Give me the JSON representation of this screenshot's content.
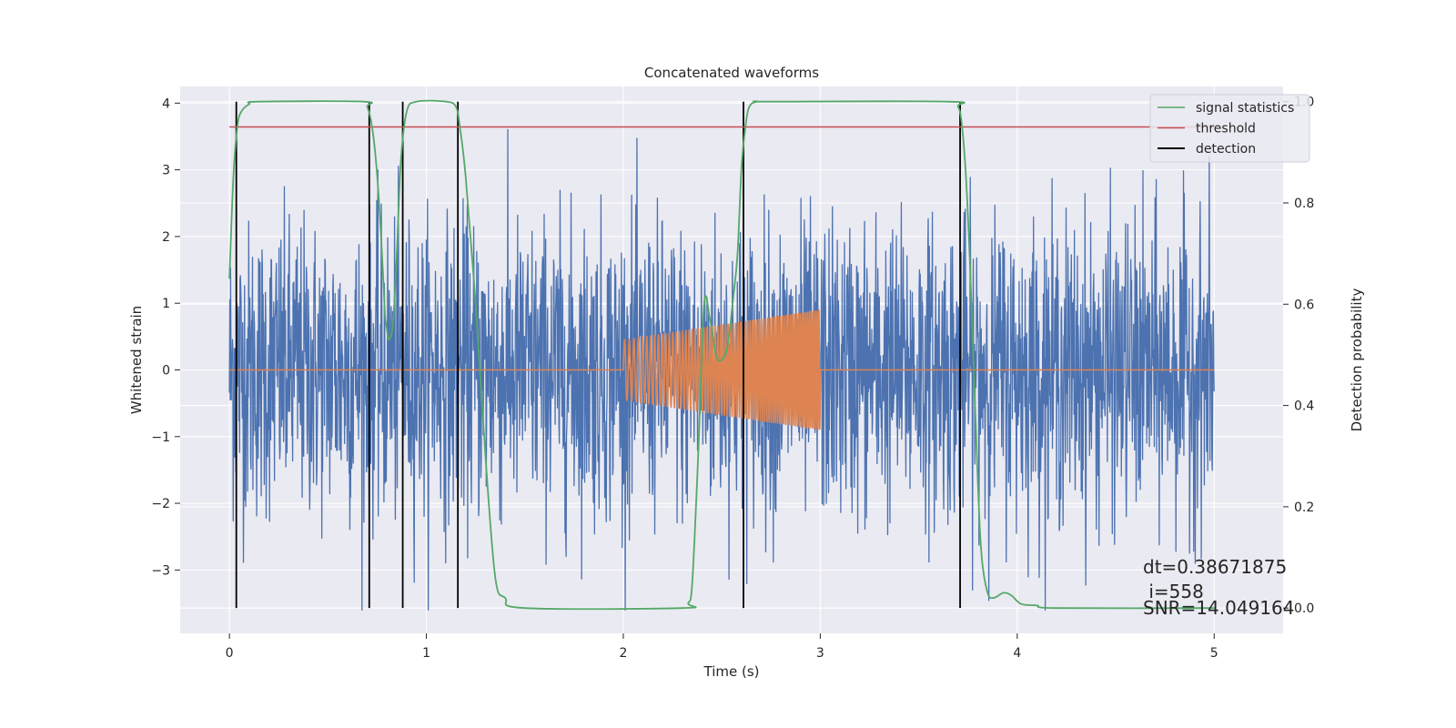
{
  "chart_data": {
    "type": "line",
    "title": "Concatenated waveforms",
    "xlabel": "Time (s)",
    "ylabel": "Whitened strain",
    "ylabel_right": "Detection probability",
    "xlim": [
      -0.25,
      5.35
    ],
    "ylim": [
      -3.95,
      4.25
    ],
    "ylim_right": [
      -0.05,
      1.03
    ],
    "xticks": [
      0,
      1,
      2,
      3,
      4,
      5
    ],
    "yticks": [
      -3,
      -2,
      -1,
      0,
      1,
      2,
      3,
      4
    ],
    "yticks_right": [
      0.0,
      0.2,
      0.4,
      0.6,
      0.8,
      1.0
    ],
    "xtick_labels": [
      "0",
      "1",
      "2",
      "3",
      "4",
      "5"
    ],
    "ytick_labels": [
      "−3",
      "−2",
      "−1",
      "0",
      "1",
      "2",
      "3",
      "4"
    ],
    "ytick_right_labels": [
      "0.0",
      "0.2",
      "0.4",
      "0.6",
      "0.8",
      "1.0"
    ],
    "grid": true,
    "legend_position": "top-right",
    "colors": {
      "strain": "#4c72b0",
      "injection": "#dd8452",
      "signal_statistics": "#55a868",
      "threshold": "#c44e52",
      "detection": "#000000",
      "background": "#eaeaf2",
      "grid": "#ffffff"
    },
    "series": [
      {
        "axis": "left",
        "role": "whitened strain noise",
        "x_range": [
          0,
          5
        ],
        "typical_envelope": [
          -2.2,
          2.2
        ],
        "peak_range": [
          -3.6,
          3.7
        ]
      },
      {
        "axis": "left",
        "role": "injected chirp waveform",
        "x_range": [
          0,
          5
        ],
        "active_range": [
          2.0,
          3.0
        ],
        "amplitude_start": 0.45,
        "amplitude_end": 0.9
      },
      {
        "name": "signal statistics",
        "axis": "right",
        "x": [
          0,
          0.02,
          0.04,
          0.06,
          0.1,
          0.15,
          0.68,
          0.7,
          0.72,
          0.74,
          0.76,
          0.78,
          0.79,
          0.8,
          0.81,
          0.83,
          0.85,
          0.87,
          0.9,
          0.95,
          1.1,
          1.15,
          1.17,
          1.2,
          1.25,
          1.3,
          1.35,
          1.4,
          1.5,
          2.3,
          2.33,
          2.35,
          2.38,
          2.41,
          2.44,
          2.47,
          2.5,
          2.53,
          2.56,
          2.58,
          2.6,
          2.62,
          2.64,
          2.68,
          2.75,
          3.65,
          3.7,
          3.72,
          3.74,
          3.76,
          3.8,
          3.82,
          3.85,
          3.88,
          3.93,
          3.97,
          4.02,
          4.1,
          4.2,
          5.0
        ],
        "values": [
          0.65,
          0.85,
          0.95,
          0.98,
          0.995,
          1.0,
          1.0,
          0.99,
          0.96,
          0.9,
          0.8,
          0.66,
          0.58,
          0.55,
          0.53,
          0.56,
          0.7,
          0.88,
          0.98,
          1.0,
          1.0,
          0.99,
          0.95,
          0.85,
          0.6,
          0.3,
          0.06,
          0.02,
          0.0,
          0.0,
          0.01,
          0.05,
          0.3,
          0.6,
          0.57,
          0.5,
          0.49,
          0.52,
          0.62,
          0.7,
          0.87,
          0.95,
          0.99,
          1.0,
          1.0,
          1.0,
          0.99,
          0.95,
          0.85,
          0.68,
          0.25,
          0.1,
          0.03,
          0.02,
          0.03,
          0.025,
          0.008,
          0.005,
          0.0,
          0.0
        ]
      },
      {
        "name": "threshold",
        "axis": "right",
        "x": [
          0,
          5
        ],
        "values": [
          0.95,
          0.95
        ]
      }
    ],
    "detections": {
      "name": "detection",
      "x": [
        0.035,
        0.71,
        0.88,
        1.16,
        2.61,
        3.71
      ]
    },
    "annotations": [
      "dt=0.38671875",
      " i=558",
      "SNR=14.049164"
    ]
  }
}
